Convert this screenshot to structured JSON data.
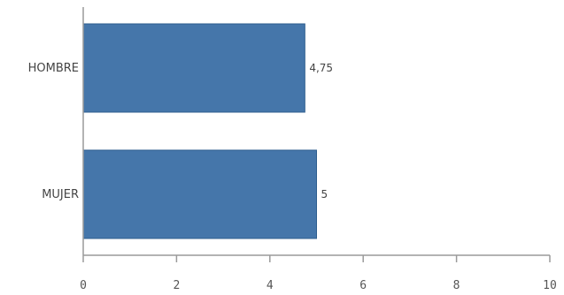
{
  "chart_data": {
    "type": "bar",
    "orientation": "horizontal",
    "categories": [
      "HOMBRE",
      "MUJER"
    ],
    "values": [
      4.75,
      5
    ],
    "value_labels": [
      "4,75",
      "5"
    ],
    "xlim": [
      0,
      10
    ],
    "xticks": [
      0,
      2,
      4,
      6,
      8,
      10
    ],
    "xtick_labels": [
      "0",
      "2",
      "4",
      "6",
      "8",
      "10"
    ],
    "bar_color": "#4576aa",
    "title": "",
    "xlabel": "",
    "ylabel": "",
    "grid": false,
    "legend": "none"
  }
}
